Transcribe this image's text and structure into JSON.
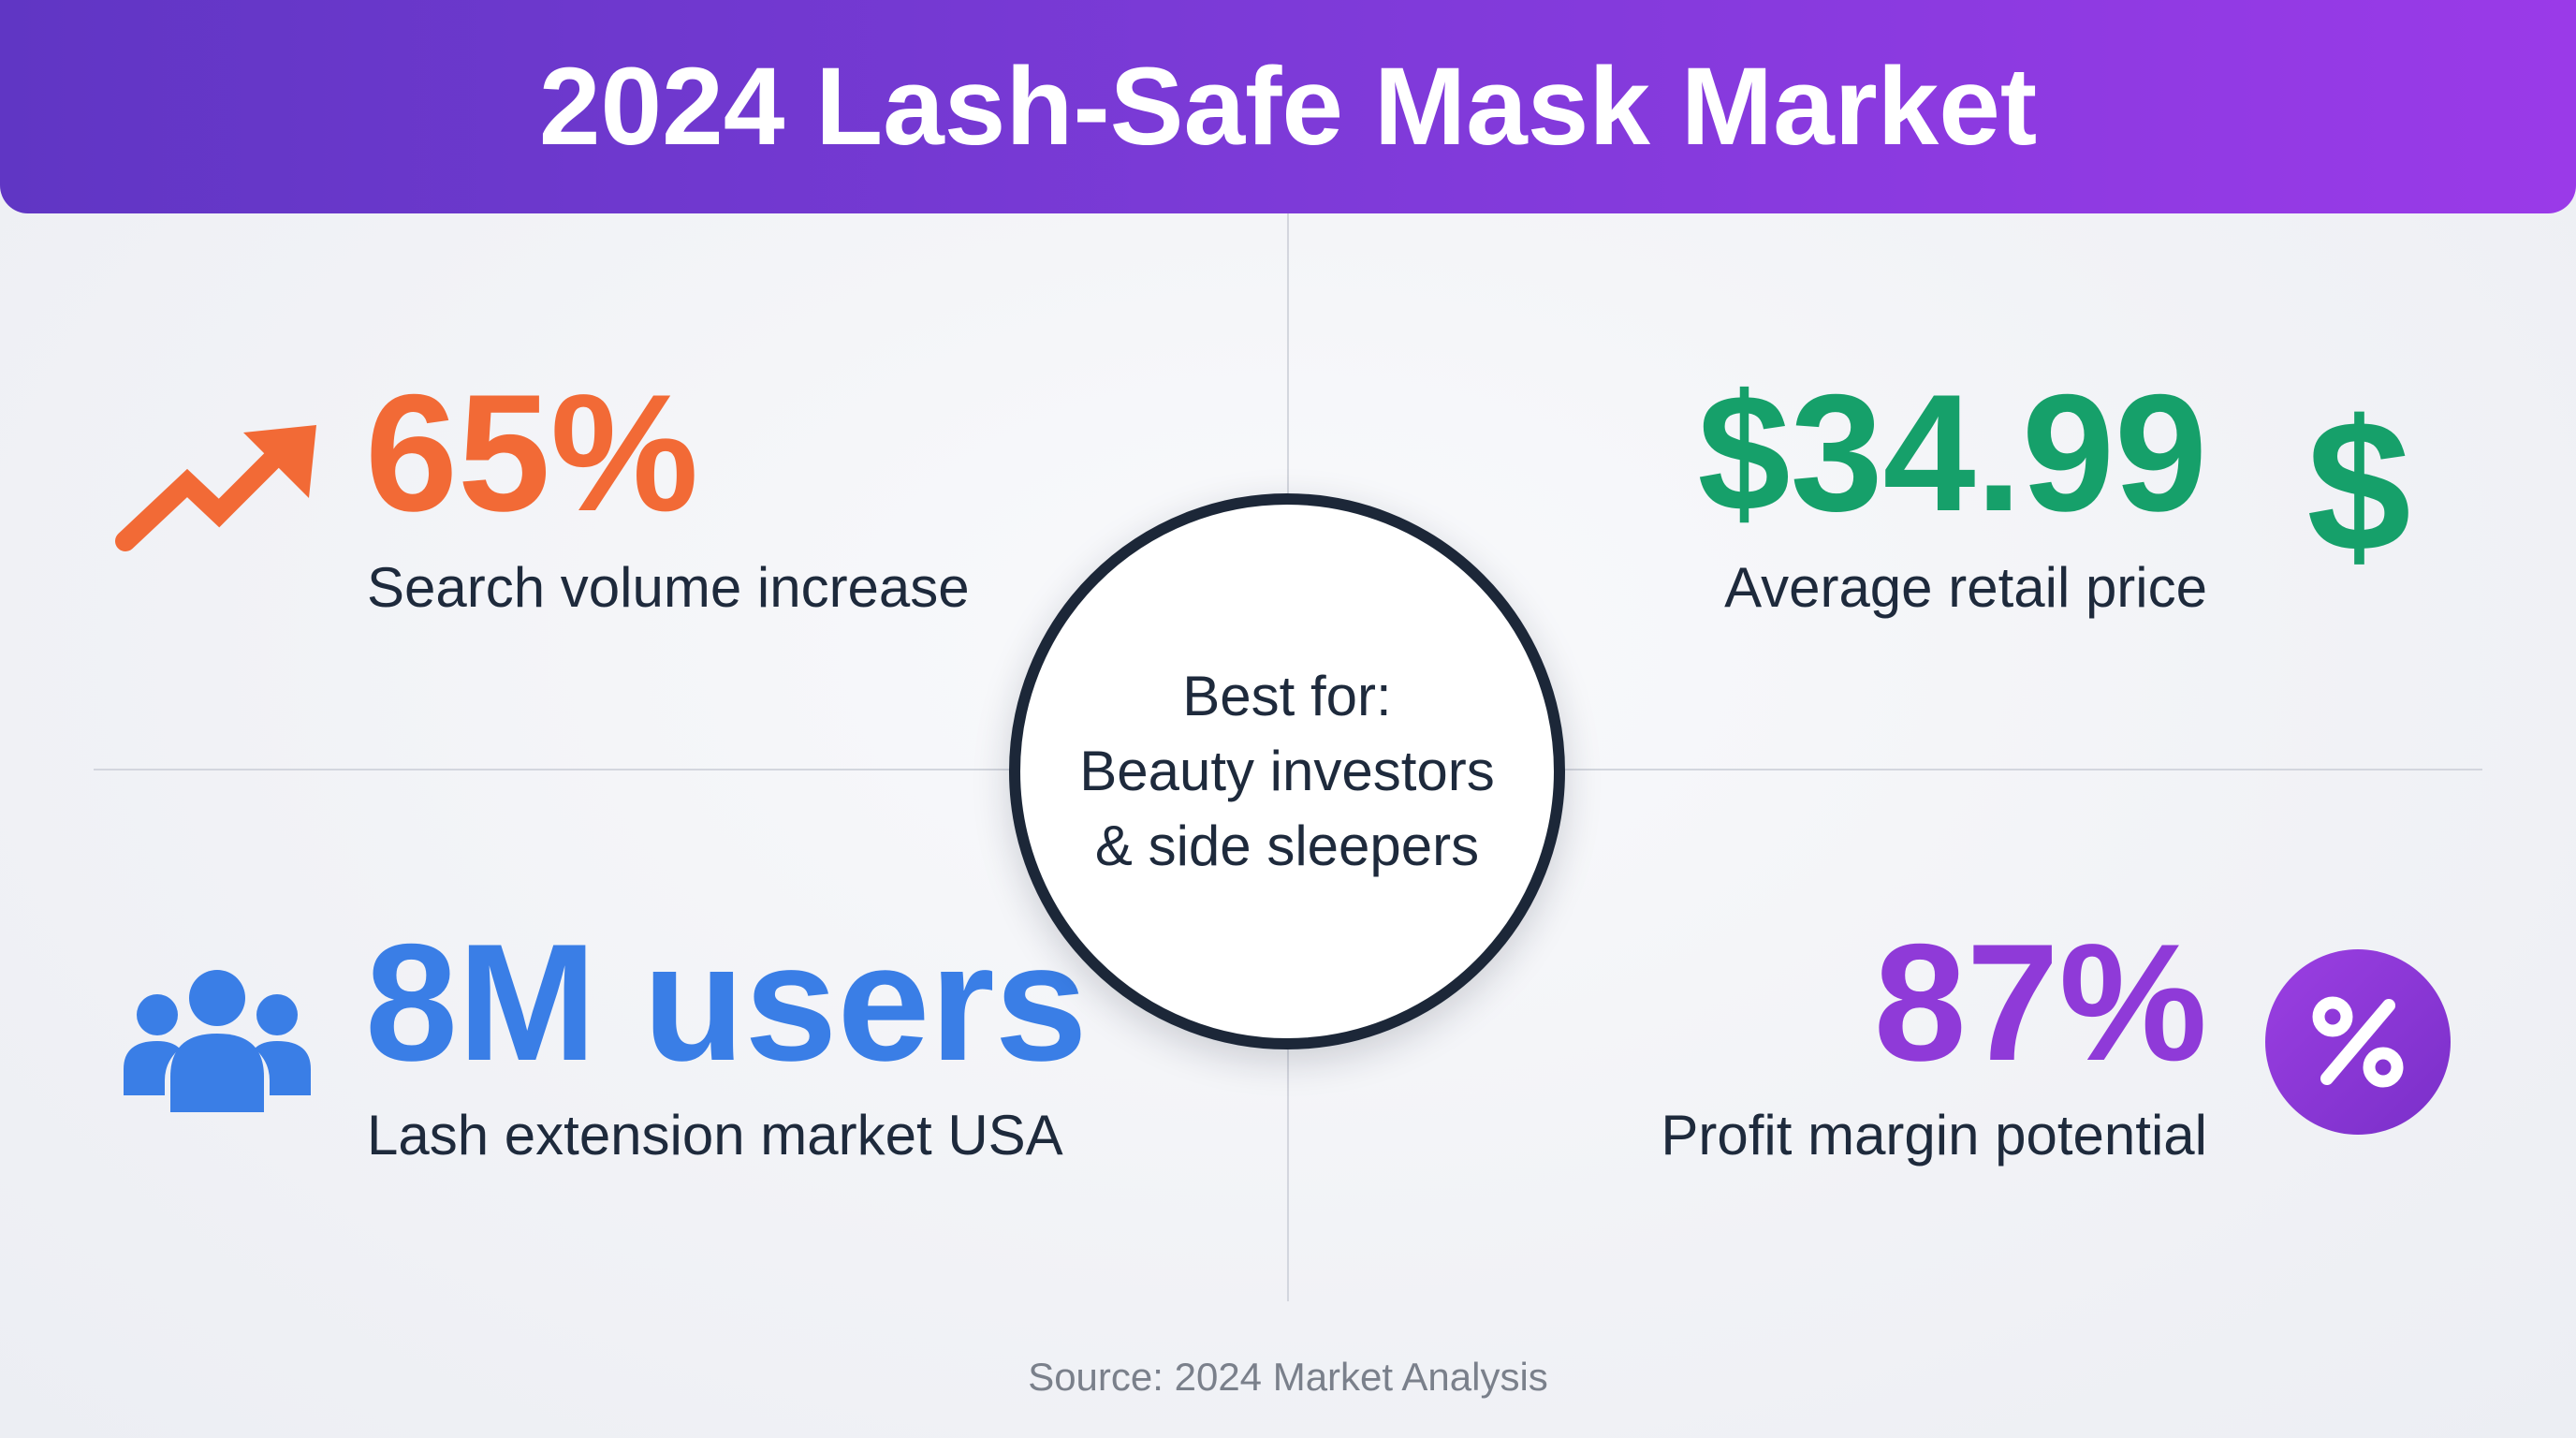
{
  "title": "2024 Lash-Safe Mask Market",
  "center": {
    "line1": "Best for:",
    "line2": "Beauty investors",
    "line3": "& side sleepers"
  },
  "stats": {
    "search": {
      "value": "65%",
      "label": "Search volume increase",
      "icon": "trending-up-icon",
      "color": "#f26a36"
    },
    "price": {
      "value": "$34.99",
      "label": "Average retail price",
      "icon": "dollar-sign-icon",
      "color": "#16a06a"
    },
    "users": {
      "value": "8M users",
      "label": "Lash extension market USA",
      "icon": "users-icon",
      "color": "#3a7ee6"
    },
    "margin": {
      "value": "87%",
      "label": "Profit margin potential",
      "icon": "percent-badge-icon",
      "color": "#8f3ad8"
    }
  },
  "source": "Source: 2024 Market Analysis"
}
